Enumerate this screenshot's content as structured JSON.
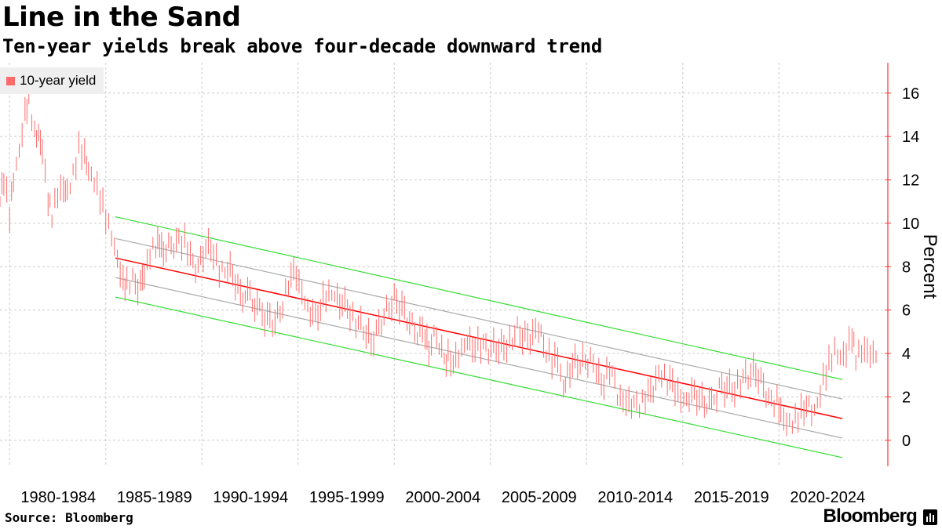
{
  "header": {
    "title": "Line in the Sand",
    "subtitle": "Ten-year yields break above four-decade downward trend"
  },
  "footer": {
    "source": "Source: Bloomberg",
    "brand": "Bloomberg"
  },
  "colors": {
    "series": "#ff6b6b",
    "trend": "#ff0000",
    "channel_outer": "#33dd33",
    "channel_inner": "#aaaaaa",
    "axis": "#ff3333",
    "grid": "#cccccc"
  },
  "icons": {
    "brand": "bloomberg-bars-icon"
  },
  "chart_data": {
    "type": "line",
    "legend": {
      "entries": [
        "10-year yield"
      ],
      "placement": "top-left"
    },
    "xlabel": "",
    "ylabel": "Percent",
    "xlim": [
      1979.5,
      2025.5
    ],
    "ylim": [
      -1.2,
      17.4
    ],
    "yticks": [
      0,
      2,
      4,
      6,
      8,
      10,
      12,
      14,
      16
    ],
    "x_tick_labels": [
      "1980-1984",
      "1985-1989",
      "1990-1994",
      "1995-1999",
      "2000-2004",
      "2005-2009",
      "2010-2014",
      "2015-2019",
      "2020-2024"
    ],
    "x_tick_positions": [
      1980,
      1985,
      1990,
      1995,
      2000,
      2005,
      2010,
      2015,
      2020
    ],
    "grid": true,
    "y_axis_side": "right",
    "series": [
      {
        "name": "10-year yield",
        "x": [
          1979.5,
          1979.7,
          1980.0,
          1980.2,
          1980.5,
          1980.8,
          1981.0,
          1981.3,
          1981.5,
          1981.7,
          1982.0,
          1982.2,
          1982.5,
          1982.8,
          1983.0,
          1983.3,
          1983.6,
          1983.9,
          1984.1,
          1984.4,
          1984.7,
          1985.0,
          1985.3,
          1985.6,
          1985.9,
          1986.1,
          1986.4,
          1986.8,
          1987.0,
          1987.3,
          1987.6,
          1987.8,
          1988.0,
          1988.4,
          1988.8,
          1989.1,
          1989.4,
          1989.8,
          1990.2,
          1990.6,
          1990.9,
          1991.2,
          1991.6,
          1992.0,
          1992.5,
          1993.0,
          1993.4,
          1993.8,
          1994.2,
          1994.5,
          1994.9,
          1995.2,
          1995.5,
          1995.9,
          1996.3,
          1996.6,
          1996.9,
          1997.3,
          1997.7,
          1998.0,
          1998.4,
          1998.8,
          1999.2,
          1999.6,
          2000.0,
          2000.4,
          2000.8,
          2001.2,
          2001.6,
          2001.8,
          2002.2,
          2002.6,
          2002.8,
          2003.2,
          2003.5,
          2003.8,
          2004.2,
          2004.5,
          2004.9,
          2005.3,
          2005.7,
          2006.0,
          2006.4,
          2006.8,
          2007.2,
          2007.5,
          2007.9,
          2008.2,
          2008.5,
          2008.8,
          2009.0,
          2009.4,
          2009.8,
          2010.2,
          2010.5,
          2010.9,
          2011.2,
          2011.6,
          2011.9,
          2012.2,
          2012.6,
          2012.9,
          2013.2,
          2013.6,
          2013.9,
          2014.2,
          2014.6,
          2014.9,
          2015.2,
          2015.6,
          2016.0,
          2016.5,
          2016.9,
          2017.3,
          2017.7,
          2018.0,
          2018.4,
          2018.8,
          2019.2,
          2019.6,
          2019.9,
          2020.1,
          2020.4,
          2020.7,
          2021.0,
          2021.3,
          2021.7,
          2022.0,
          2022.3,
          2022.6,
          2022.9,
          2023.2,
          2023.5,
          2023.8,
          2024.0,
          2024.3,
          2024.6,
          2024.9,
          2025.2
        ],
        "y": [
          11.0,
          12.0,
          10.5,
          12.2,
          13.5,
          15.2,
          15.8,
          14.0,
          13.9,
          13.2,
          11.0,
          10.4,
          11.5,
          11.8,
          11.6,
          12.3,
          13.4,
          13.0,
          12.2,
          11.8,
          11.2,
          10.4,
          9.6,
          8.5,
          7.4,
          7.2,
          7.3,
          7.1,
          7.5,
          8.5,
          9.0,
          9.3,
          8.8,
          9.0,
          9.2,
          9.1,
          8.3,
          7.9,
          8.9,
          8.7,
          7.9,
          8.0,
          7.7,
          6.7,
          6.6,
          5.9,
          5.6,
          5.4,
          6.2,
          7.3,
          7.8,
          7.0,
          6.2,
          5.7,
          6.4,
          6.6,
          6.5,
          6.3,
          5.9,
          5.5,
          5.2,
          4.5,
          5.3,
          6.0,
          6.5,
          6.1,
          5.4,
          4.9,
          5.0,
          4.3,
          4.9,
          3.7,
          3.9,
          3.6,
          4.0,
          4.4,
          4.3,
          4.4,
          4.2,
          4.3,
          4.3,
          4.6,
          5.1,
          4.7,
          4.8,
          5.0,
          4.1,
          3.7,
          4.0,
          2.5,
          3.2,
          3.6,
          3.6,
          3.7,
          3.0,
          2.6,
          3.4,
          2.2,
          2.0,
          1.9,
          1.6,
          1.7,
          2.0,
          2.7,
          2.9,
          2.7,
          2.5,
          2.1,
          2.0,
          2.2,
          1.8,
          1.6,
          2.4,
          2.4,
          2.3,
          2.7,
          3.0,
          3.2,
          2.5,
          1.7,
          1.8,
          1.1,
          0.6,
          0.7,
          1.1,
          1.6,
          1.4,
          1.8,
          2.9,
          3.5,
          4.0,
          3.6,
          3.9,
          4.8,
          3.9,
          4.3,
          4.3,
          4.0,
          4.4
        ]
      },
      {
        "name": "",
        "x": [
          1985.5,
          2023.3
        ],
        "y": [
          8.4,
          1.0
        ]
      },
      {
        "name": "",
        "x": [
          1985.5,
          2023.3
        ],
        "y": [
          10.3,
          2.8
        ]
      },
      {
        "name": "",
        "x": [
          1985.5,
          2023.3
        ],
        "y": [
          9.3,
          1.9
        ]
      },
      {
        "name": "",
        "x": [
          1985.5,
          2023.3
        ],
        "y": [
          7.5,
          0.1
        ]
      },
      {
        "name": "",
        "x": [
          1985.5,
          2023.3
        ],
        "y": [
          6.6,
          -0.8
        ]
      }
    ]
  }
}
